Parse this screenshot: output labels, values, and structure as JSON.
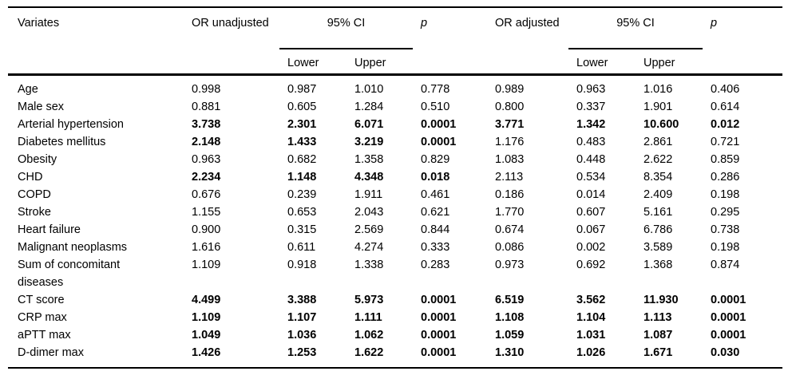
{
  "page": {
    "background_color": "#ffffff",
    "text_color": "#000000",
    "rule_color": "#000000"
  },
  "table": {
    "columns": {
      "variates": "Variates",
      "or_unadjusted": "OR unadjusted",
      "ci_unadjusted": "95% CI",
      "p_unadjusted": "p",
      "or_adjusted": "OR adjusted",
      "ci_adjusted": "95% CI",
      "p_adjusted": "p",
      "ci_lower": "Lower",
      "ci_upper": "Upper"
    },
    "rows": [
      {
        "variate": "Age",
        "values": [
          "0.998",
          "0.987",
          "1.010",
          "0.778",
          "0.989",
          "0.963",
          "1.016",
          "0.406"
        ],
        "bold": [
          0,
          0,
          0,
          0,
          0,
          0,
          0,
          0
        ]
      },
      {
        "variate": "Male sex",
        "values": [
          "0.881",
          "0.605",
          "1.284",
          "0.510",
          "0.800",
          "0.337",
          "1.901",
          "0.614"
        ],
        "bold": [
          0,
          0,
          0,
          0,
          0,
          0,
          0,
          0
        ]
      },
      {
        "variate": "Arterial hypertension",
        "values": [
          "3.738",
          "2.301",
          "6.071",
          "0.0001",
          "3.771",
          "1.342",
          "10.600",
          "0.012"
        ],
        "bold": [
          1,
          1,
          1,
          1,
          1,
          1,
          1,
          1
        ]
      },
      {
        "variate": "Diabetes mellitus",
        "values": [
          "2.148",
          "1.433",
          "3.219",
          "0.0001",
          "1.176",
          "0.483",
          "2.861",
          "0.721"
        ],
        "bold": [
          1,
          1,
          1,
          1,
          0,
          0,
          0,
          0
        ]
      },
      {
        "variate": "Obesity",
        "values": [
          "0.963",
          "0.682",
          "1.358",
          "0.829",
          "1.083",
          "0.448",
          "2.622",
          "0.859"
        ],
        "bold": [
          0,
          0,
          0,
          0,
          0,
          0,
          0,
          0
        ]
      },
      {
        "variate": "CHD",
        "values": [
          "2.234",
          "1.148",
          "4.348",
          "0.018",
          "2.113",
          "0.534",
          "8.354",
          "0.286"
        ],
        "bold": [
          1,
          1,
          1,
          1,
          0,
          0,
          0,
          0
        ]
      },
      {
        "variate": "COPD",
        "values": [
          "0.676",
          "0.239",
          "1.911",
          "0.461",
          "0.186",
          "0.014",
          "2.409",
          "0.198"
        ],
        "bold": [
          0,
          0,
          0,
          0,
          0,
          0,
          0,
          0
        ]
      },
      {
        "variate": "Stroke",
        "values": [
          "1.155",
          "0.653",
          "2.043",
          "0.621",
          "1.770",
          "0.607",
          "5.161",
          "0.295"
        ],
        "bold": [
          0,
          0,
          0,
          0,
          0,
          0,
          0,
          0
        ]
      },
      {
        "variate": "Heart failure",
        "values": [
          "0.900",
          "0.315",
          "2.569",
          "0.844",
          "0.674",
          "0.067",
          "6.786",
          "0.738"
        ],
        "bold": [
          0,
          0,
          0,
          0,
          0,
          0,
          0,
          0
        ]
      },
      {
        "variate": "Malignant neoplasms",
        "values": [
          "1.616",
          "0.611",
          "4.274",
          "0.333",
          "0.086",
          "0.002",
          "3.589",
          "0.198"
        ],
        "bold": [
          0,
          0,
          0,
          0,
          0,
          0,
          0,
          0
        ]
      },
      {
        "variate": "Sum of concomitant diseases",
        "values": [
          "1.109",
          "0.918",
          "1.338",
          "0.283",
          "0.973",
          "0.692",
          "1.368",
          "0.874"
        ],
        "bold": [
          0,
          0,
          0,
          0,
          0,
          0,
          0,
          0
        ]
      },
      {
        "variate": "CT score",
        "values": [
          "4.499",
          "3.388",
          "5.973",
          "0.0001",
          "6.519",
          "3.562",
          "11.930",
          "0.0001"
        ],
        "bold": [
          1,
          1,
          1,
          1,
          1,
          1,
          1,
          1
        ]
      },
      {
        "variate": "CRP max",
        "values": [
          "1.109",
          "1.107",
          "1.111",
          "0.0001",
          "1.108",
          "1.104",
          "1.113",
          "0.0001"
        ],
        "bold": [
          1,
          1,
          1,
          1,
          1,
          1,
          1,
          1
        ]
      },
      {
        "variate": "aPTT max",
        "values": [
          "1.049",
          "1.036",
          "1.062",
          "0.0001",
          "1.059",
          "1.031",
          "1.087",
          "0.0001"
        ],
        "bold": [
          1,
          1,
          1,
          1,
          1,
          1,
          1,
          1
        ]
      },
      {
        "variate": "D-dimer max",
        "values": [
          "1.426",
          "1.253",
          "1.622",
          "0.0001",
          "1.310",
          "1.026",
          "1.671",
          "0.030"
        ],
        "bold": [
          1,
          1,
          1,
          1,
          1,
          1,
          1,
          1
        ]
      }
    ]
  }
}
